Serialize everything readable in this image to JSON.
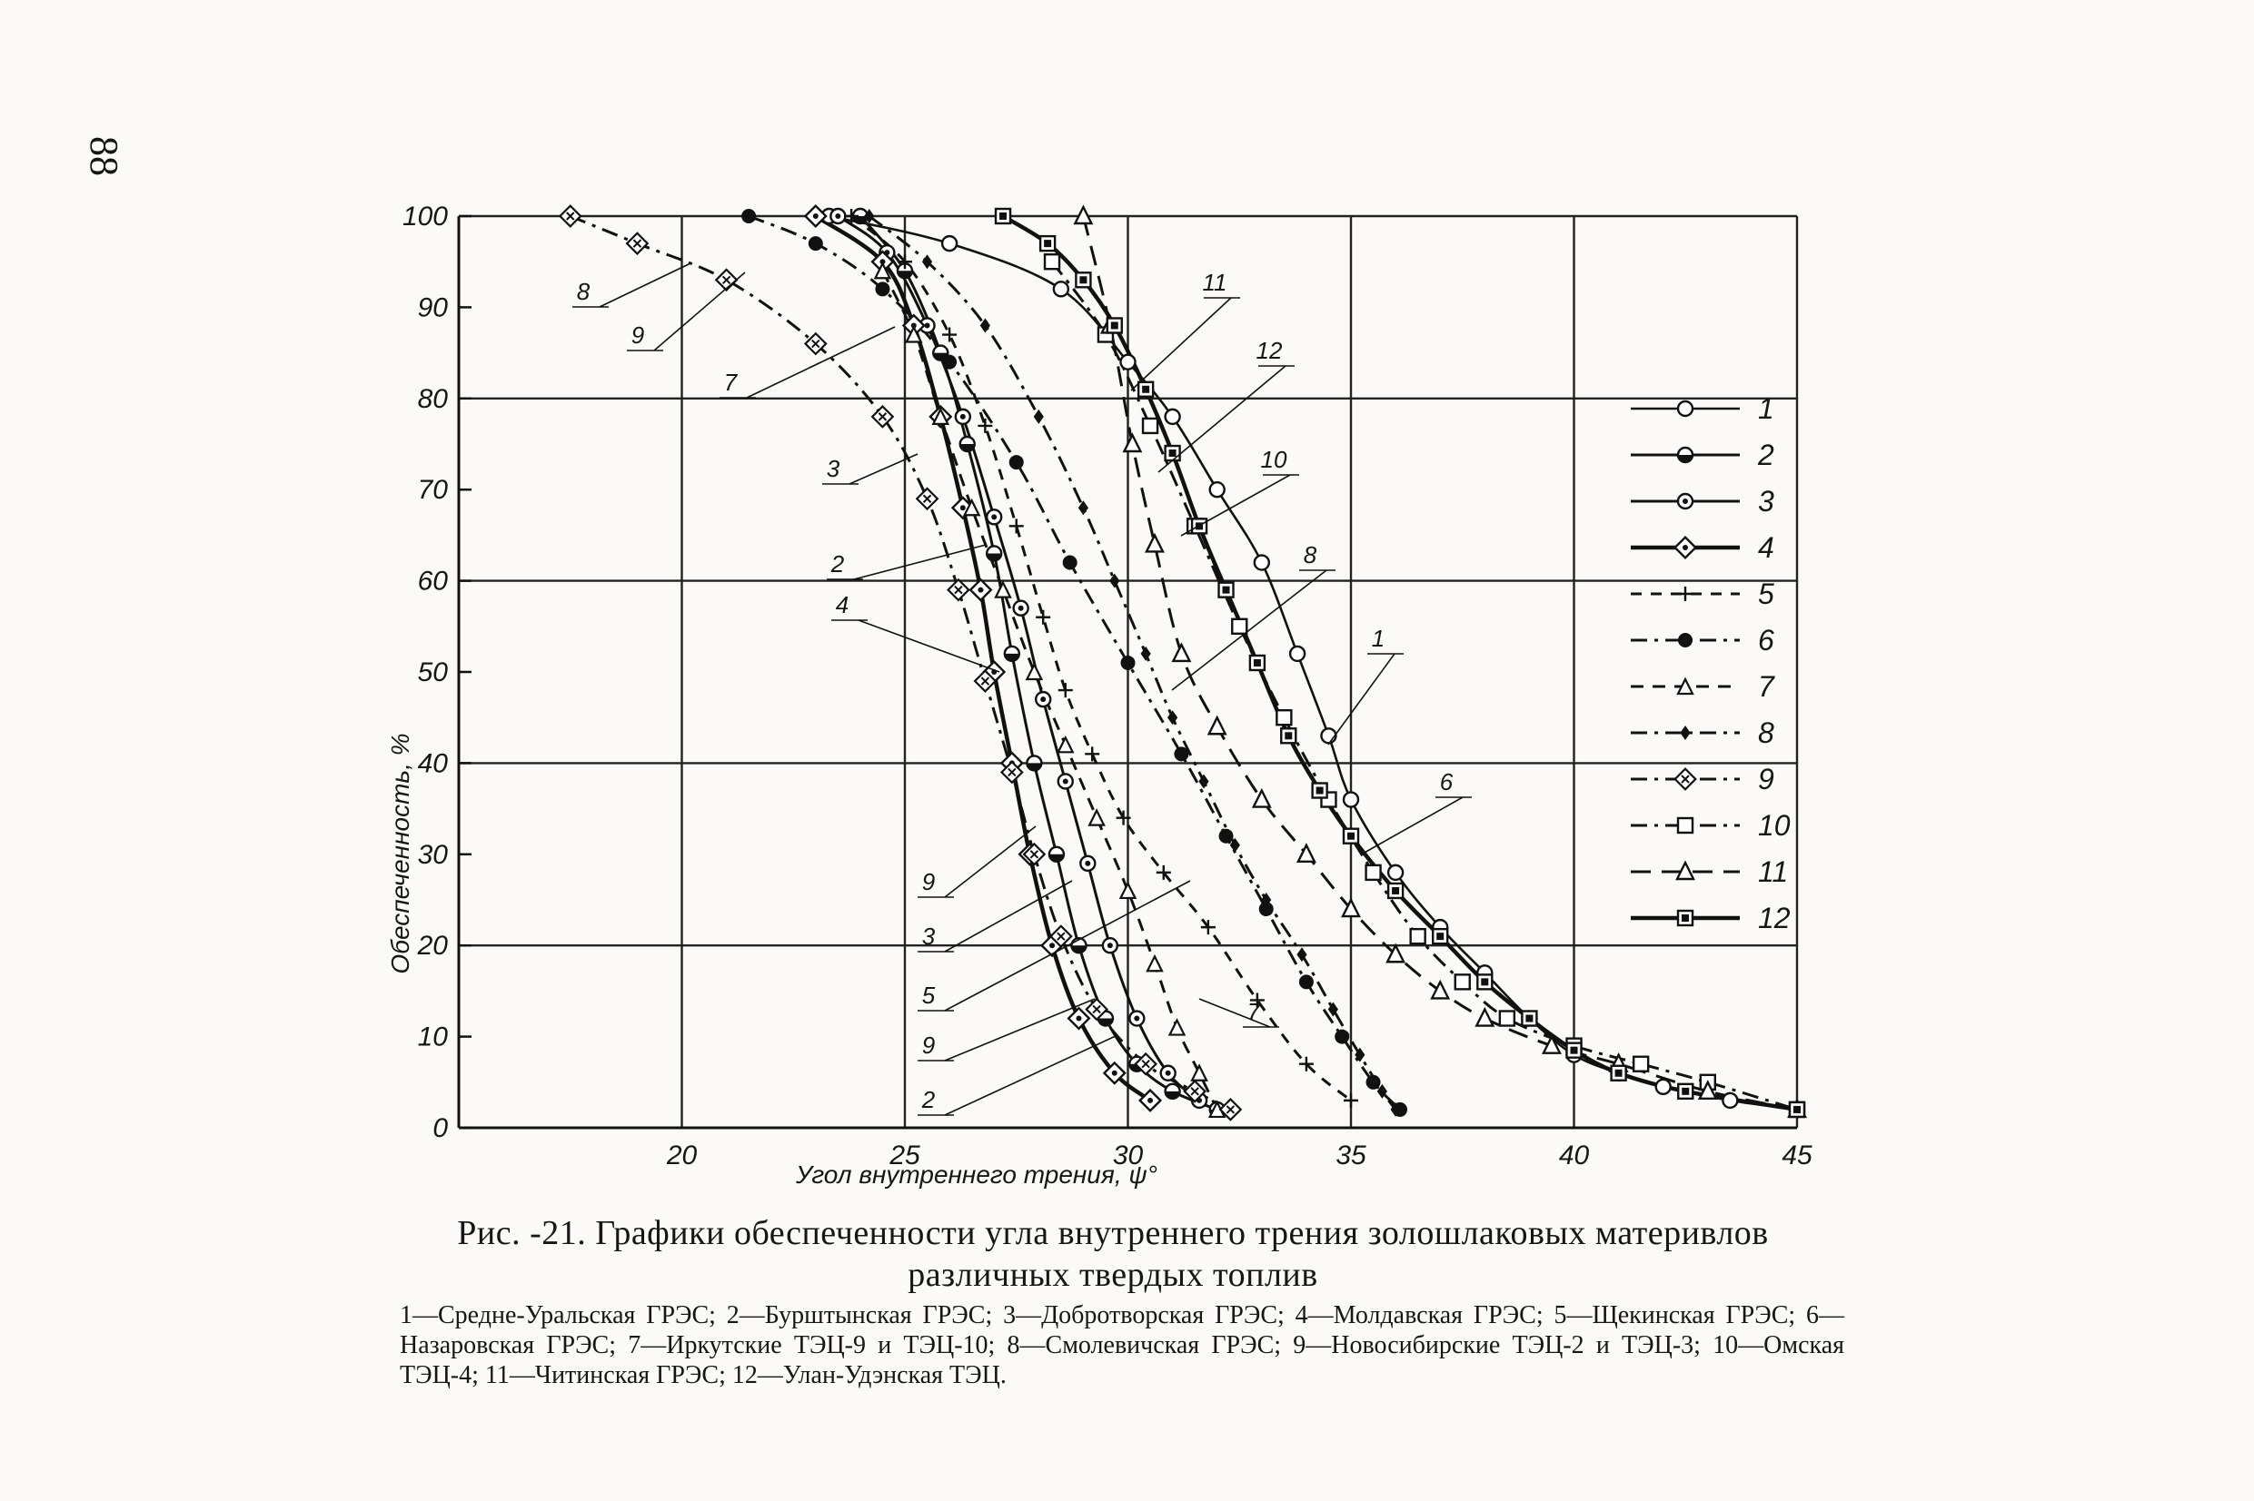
{
  "page_number": "88",
  "caption": {
    "title": "Рис. -21. Графики обеспеченности угла внутреннего трения золошлаковых материвлов различных твердых топлив",
    "legend_text": "1—Средне-Уральская ГРЭС; 2—Бурштынская ГРЭС; 3—Добротворская ГРЭС; 4—Молдавская ГРЭС; 5—Щекинская ГРЭС; 6—Назаровская ГРЭС; 7—Иркутские ТЭЦ-9 и ТЭЦ-10; 8—Смолевичская ГРЭС; 9—Новосибирские ТЭЦ-2 и ТЭЦ-3; 10—Омская ТЭЦ-4; 11—Читинская ГРЭС; 12—Улан-Удэнская ТЭЦ."
  },
  "chart_data": {
    "type": "line",
    "xlabel": "Угол внутреннего трения, ψ°",
    "ylabel": "Обеспеченность, %",
    "xlim": [
      15,
      45
    ],
    "ylim": [
      0,
      100
    ],
    "x_ticks": [
      "20",
      "25",
      "30",
      "35",
      "40",
      "45"
    ],
    "y_ticks": [
      "0",
      "10",
      "20",
      "30",
      "40",
      "50",
      "60",
      "70",
      "80",
      "90",
      "100"
    ],
    "grid": true,
    "legend_position": "right",
    "series": [
      {
        "name": "1",
        "marker": "circle-open",
        "line": "solid-thin",
        "points": [
          [
            23.3,
            100
          ],
          [
            26,
            97
          ],
          [
            28.5,
            92
          ],
          [
            30,
            84
          ],
          [
            31,
            78
          ],
          [
            32,
            70
          ],
          [
            33,
            62
          ],
          [
            33.8,
            52
          ],
          [
            34.5,
            43
          ],
          [
            35,
            36
          ],
          [
            36,
            28
          ],
          [
            37,
            22
          ],
          [
            38,
            17
          ],
          [
            39,
            12
          ],
          [
            40,
            8
          ],
          [
            41,
            6
          ],
          [
            42,
            4.5
          ],
          [
            43.5,
            3
          ],
          [
            45,
            2
          ]
        ]
      },
      {
        "name": "2",
        "marker": "circle-half",
        "line": "solid",
        "points": [
          [
            24,
            100
          ],
          [
            25,
            94
          ],
          [
            25.8,
            85
          ],
          [
            26.4,
            75
          ],
          [
            27,
            63
          ],
          [
            27.4,
            52
          ],
          [
            27.9,
            40
          ],
          [
            28.4,
            30
          ],
          [
            28.9,
            20
          ],
          [
            29.5,
            12
          ],
          [
            30.2,
            7
          ],
          [
            31,
            4
          ],
          [
            32,
            2
          ]
        ]
      },
      {
        "name": "3",
        "marker": "circle-dot",
        "line": "solid",
        "points": [
          [
            23.5,
            100
          ],
          [
            24.6,
            96
          ],
          [
            25.5,
            88
          ],
          [
            26.3,
            78
          ],
          [
            27,
            67
          ],
          [
            27.6,
            57
          ],
          [
            28.1,
            47
          ],
          [
            28.6,
            38
          ],
          [
            29.1,
            29
          ],
          [
            29.6,
            20
          ],
          [
            30.2,
            12
          ],
          [
            30.9,
            6
          ],
          [
            31.6,
            3
          ]
        ]
      },
      {
        "name": "4",
        "marker": "square-dot",
        "line": "solid-bold",
        "points": [
          [
            23,
            100
          ],
          [
            24.5,
            95
          ],
          [
            25.2,
            88
          ],
          [
            25.8,
            78
          ],
          [
            26.3,
            68
          ],
          [
            26.7,
            59
          ],
          [
            27,
            50
          ],
          [
            27.4,
            40
          ],
          [
            27.8,
            30
          ],
          [
            28.3,
            20
          ],
          [
            28.9,
            12
          ],
          [
            29.7,
            6
          ],
          [
            30.5,
            3
          ]
        ]
      },
      {
        "name": "5",
        "marker": "plus",
        "line": "dashed",
        "points": [
          [
            23.8,
            100
          ],
          [
            25,
            95
          ],
          [
            26,
            87
          ],
          [
            26.8,
            77
          ],
          [
            27.5,
            66
          ],
          [
            28.1,
            56
          ],
          [
            28.6,
            48
          ],
          [
            29.2,
            41
          ],
          [
            29.9,
            34
          ],
          [
            30.8,
            28
          ],
          [
            31.8,
            22
          ],
          [
            32.9,
            14
          ],
          [
            34,
            7
          ],
          [
            35,
            3
          ]
        ]
      },
      {
        "name": "6",
        "marker": "circle-filled",
        "line": "dash-dot",
        "points": [
          [
            21.5,
            100
          ],
          [
            23,
            97
          ],
          [
            24.5,
            92
          ],
          [
            26,
            84
          ],
          [
            27.5,
            73
          ],
          [
            28.7,
            62
          ],
          [
            30,
            51
          ],
          [
            31.2,
            41
          ],
          [
            32.2,
            32
          ],
          [
            33.1,
            24
          ],
          [
            34,
            16
          ],
          [
            34.8,
            10
          ],
          [
            35.5,
            5
          ],
          [
            36.1,
            2
          ]
        ]
      },
      {
        "name": "7",
        "marker": "triangle-cross",
        "line": "dash-cross",
        "points": [
          [
            24.5,
            94
          ],
          [
            25.2,
            87
          ],
          [
            25.8,
            78
          ],
          [
            26.5,
            68
          ],
          [
            27.2,
            59
          ],
          [
            27.9,
            50
          ],
          [
            28.6,
            42
          ],
          [
            29.3,
            34
          ],
          [
            30,
            26
          ],
          [
            30.6,
            18
          ],
          [
            31.1,
            11
          ],
          [
            31.6,
            6
          ],
          [
            32,
            2
          ]
        ]
      },
      {
        "name": "8",
        "marker": "star-filled",
        "line": "dash-dot",
        "points": [
          [
            24.2,
            100
          ],
          [
            25.5,
            95
          ],
          [
            26.8,
            88
          ],
          [
            28,
            78
          ],
          [
            29,
            68
          ],
          [
            29.7,
            60
          ],
          [
            30.4,
            52
          ],
          [
            31,
            45
          ],
          [
            31.7,
            38
          ],
          [
            32.4,
            31
          ],
          [
            33.1,
            25
          ],
          [
            33.9,
            19
          ],
          [
            34.6,
            13
          ],
          [
            35.2,
            8
          ],
          [
            35.7,
            4
          ],
          [
            36,
            2
          ]
        ]
      },
      {
        "name": "9",
        "marker": "square-x",
        "line": "dash-dot",
        "points": [
          [
            17.5,
            100
          ],
          [
            19,
            97
          ],
          [
            21,
            93
          ],
          [
            23,
            86
          ],
          [
            24.5,
            78
          ],
          [
            25.5,
            69
          ],
          [
            26.2,
            59
          ],
          [
            26.8,
            49
          ],
          [
            27.4,
            39
          ],
          [
            27.9,
            30
          ],
          [
            28.5,
            21
          ],
          [
            29.3,
            13
          ],
          [
            30.4,
            7
          ],
          [
            31.5,
            4
          ],
          [
            32.3,
            2
          ]
        ]
      },
      {
        "name": "10",
        "marker": "square-open",
        "line": "dash-dot",
        "points": [
          [
            28.3,
            95
          ],
          [
            29.5,
            87
          ],
          [
            30.5,
            77
          ],
          [
            31.5,
            66
          ],
          [
            32.5,
            55
          ],
          [
            33.5,
            45
          ],
          [
            34.5,
            36
          ],
          [
            35.5,
            28
          ],
          [
            36.5,
            21
          ],
          [
            37.5,
            16
          ],
          [
            38.5,
            12
          ],
          [
            40,
            9
          ],
          [
            41.5,
            7
          ],
          [
            43,
            5
          ],
          [
            45,
            2
          ]
        ]
      },
      {
        "name": "11",
        "marker": "triangle-open",
        "line": "dashed-long",
        "points": [
          [
            29,
            100
          ],
          [
            29.6,
            88
          ],
          [
            30.1,
            75
          ],
          [
            30.6,
            64
          ],
          [
            31.2,
            52
          ],
          [
            32,
            44
          ],
          [
            33,
            36
          ],
          [
            34,
            30
          ],
          [
            35,
            24
          ],
          [
            36,
            19
          ],
          [
            37,
            15
          ],
          [
            38,
            12
          ],
          [
            39.5,
            9
          ],
          [
            41,
            7
          ],
          [
            43,
            4
          ],
          [
            45,
            2
          ]
        ]
      },
      {
        "name": "12",
        "marker": "square-double",
        "line": "solid-bold",
        "points": [
          [
            27.2,
            100
          ],
          [
            28.2,
            97
          ],
          [
            29,
            93
          ],
          [
            29.7,
            88
          ],
          [
            30.4,
            81
          ],
          [
            31,
            74
          ],
          [
            31.6,
            66
          ],
          [
            32.2,
            59
          ],
          [
            32.9,
            51
          ],
          [
            33.6,
            43
          ],
          [
            34.3,
            37
          ],
          [
            35,
            32
          ],
          [
            36,
            26
          ],
          [
            37,
            21
          ],
          [
            38,
            16
          ],
          [
            39,
            12
          ],
          [
            40,
            8.5
          ],
          [
            41,
            6
          ],
          [
            42.5,
            4
          ],
          [
            45,
            2
          ]
        ]
      }
    ],
    "annotations": [
      "1",
      "2",
      "3",
      "4",
      "5",
      "6",
      "7",
      "8",
      "9",
      "10",
      "11",
      "12",
      "8",
      "9",
      "7",
      "3",
      "2",
      "4",
      "9",
      "3",
      "5",
      "9",
      "2",
      "8",
      "7",
      "6"
    ]
  }
}
